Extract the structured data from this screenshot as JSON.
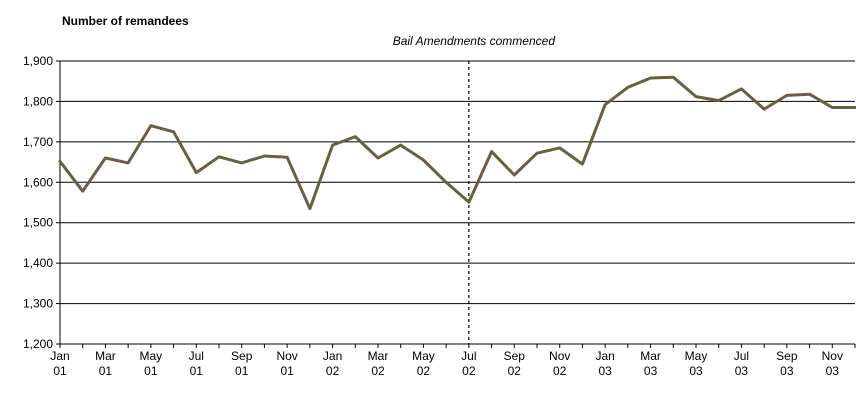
{
  "chart_data": {
    "type": "line",
    "ylabel": "Number of remandees",
    "ylim": [
      1200,
      1900
    ],
    "yticks": [
      1200,
      1300,
      1400,
      1500,
      1600,
      1700,
      1800,
      1900
    ],
    "ytick_labels": [
      "1,200",
      "1,300",
      "1,400",
      "1,500",
      "1,600",
      "1,700",
      "1,800",
      "1,900"
    ],
    "grid": true,
    "x": [
      "Jan 01",
      "Feb 01",
      "Mar 01",
      "Apr 01",
      "May 01",
      "Jun 01",
      "Jul 01",
      "Aug 01",
      "Sep 01",
      "Oct 01",
      "Nov 01",
      "Dec 01",
      "Jan 02",
      "Feb 02",
      "Mar 02",
      "Apr 02",
      "May 02",
      "Jun 02",
      "Jul 02",
      "Aug 02",
      "Sep 02",
      "Oct 02",
      "Nov 02",
      "Dec 02",
      "Jan 03",
      "Feb 03",
      "Mar 03",
      "Apr 03",
      "May 03",
      "Jun 03",
      "Jul 03",
      "Aug 03",
      "Sep 03",
      "Oct 03",
      "Nov 03",
      "Dec 03"
    ],
    "series": [
      {
        "values": [
          1652,
          1578,
          1660,
          1648,
          1740,
          1725,
          1624,
          1663,
          1648,
          1665,
          1662,
          1535,
          1692,
          1713,
          1660,
          1692,
          1655,
          1600,
          1551,
          1676,
          1618,
          1672,
          1685,
          1645,
          1792,
          1835,
          1858,
          1860,
          1812,
          1802,
          1831,
          1781,
          1815,
          1818,
          1785,
          1785
        ],
        "color": "#6b5e45"
      }
    ],
    "xtick_labels": [
      {
        "month": "Jan",
        "year": "01",
        "index": 0
      },
      {
        "month": "Mar",
        "year": "01",
        "index": 2
      },
      {
        "month": "May",
        "year": "01",
        "index": 4
      },
      {
        "month": "Jul",
        "year": "01",
        "index": 6
      },
      {
        "month": "Sep",
        "year": "01",
        "index": 8
      },
      {
        "month": "Nov",
        "year": "01",
        "index": 10
      },
      {
        "month": "Jan",
        "year": "02",
        "index": 12
      },
      {
        "month": "Mar",
        "year": "02",
        "index": 14
      },
      {
        "month": "May",
        "year": "02",
        "index": 16
      },
      {
        "month": "Jul",
        "year": "02",
        "index": 18
      },
      {
        "month": "Sep",
        "year": "02",
        "index": 20
      },
      {
        "month": "Nov",
        "year": "02",
        "index": 22
      },
      {
        "month": "Jan",
        "year": "03",
        "index": 24
      },
      {
        "month": "Mar",
        "year": "03",
        "index": 26
      },
      {
        "month": "May",
        "year": "03",
        "index": 28
      },
      {
        "month": "Jul",
        "year": "03",
        "index": 30
      },
      {
        "month": "Sep",
        "year": "03",
        "index": 32
      },
      {
        "month": "Nov",
        "year": "03",
        "index": 34
      }
    ],
    "annotations": [
      {
        "text": "Bail Amendments commenced",
        "x_index": 18,
        "style": "dashed-vertical-line"
      }
    ]
  }
}
